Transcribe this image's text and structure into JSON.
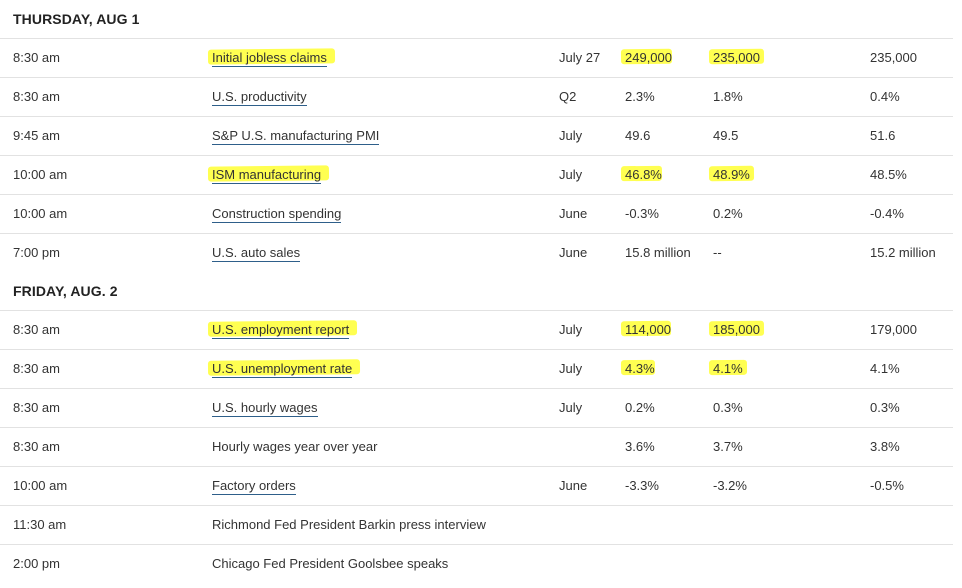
{
  "days": [
    {
      "header": "THURSDAY, AUG 1",
      "rows": [
        {
          "time": "8:30 am",
          "report": "Initial jobless claims",
          "link": true,
          "period": "July 27",
          "actual": "249,000",
          "median": "235,000",
          "previous": "235,000",
          "hl_report": true,
          "hl_actual": true,
          "hl_median": true
        },
        {
          "time": "8:30 am",
          "report": "U.S. productivity",
          "link": true,
          "period": "Q2",
          "actual": "2.3%",
          "median": "1.8%",
          "previous": "0.4%",
          "hl_report": false,
          "hl_actual": false,
          "hl_median": false
        },
        {
          "time": "9:45 am",
          "report": "S&P U.S. manufacturing PMI",
          "link": true,
          "period": "July",
          "actual": "49.6",
          "median": "49.5",
          "previous": "51.6",
          "hl_report": false,
          "hl_actual": false,
          "hl_median": false
        },
        {
          "time": "10:00 am",
          "report": "ISM manufacturing",
          "link": true,
          "period": "July",
          "actual": "46.8%",
          "median": "48.9%",
          "previous": "48.5%",
          "hl_report": true,
          "hl_actual": true,
          "hl_median": true
        },
        {
          "time": "10:00 am",
          "report": "Construction spending",
          "link": true,
          "period": "June",
          "actual": "-0.3%",
          "median": "0.2%",
          "previous": "-0.4%",
          "hl_report": false,
          "hl_actual": false,
          "hl_median": false
        },
        {
          "time": "7:00 pm",
          "report": "U.S. auto sales",
          "link": true,
          "period": "June",
          "actual": "15.8 million",
          "median": "--",
          "previous": "15.2 million",
          "hl_report": false,
          "hl_actual": false,
          "hl_median": false
        }
      ]
    },
    {
      "header": "FRIDAY, AUG. 2",
      "rows": [
        {
          "time": "8:30 am",
          "report": "U.S. employment report",
          "link": true,
          "period": "July",
          "actual": "114,000",
          "median": "185,000",
          "previous": "179,000",
          "hl_report": true,
          "hl_actual": true,
          "hl_median": true
        },
        {
          "time": "8:30 am",
          "report": "U.S. unemployment rate",
          "link": true,
          "period": "July",
          "actual": "4.3%",
          "median": "4.1%",
          "previous": "4.1%",
          "hl_report": true,
          "hl_actual": true,
          "hl_median": true
        },
        {
          "time": "8:30 am",
          "report": "U.S. hourly wages",
          "link": true,
          "period": "July",
          "actual": "0.2%",
          "median": "0.3%",
          "previous": "0.3%",
          "hl_report": false,
          "hl_actual": false,
          "hl_median": false
        },
        {
          "time": "8:30 am",
          "report": "Hourly wages year over year",
          "link": false,
          "period": "",
          "actual": "3.6%",
          "median": "3.7%",
          "previous": "3.8%",
          "hl_report": false,
          "hl_actual": false,
          "hl_median": false
        },
        {
          "time": "10:00 am",
          "report": "Factory orders",
          "link": true,
          "period": "June",
          "actual": "-3.3%",
          "median": "-3.2%",
          "previous": "-0.5%",
          "hl_report": false,
          "hl_actual": false,
          "hl_median": false
        },
        {
          "time": "11:30 am",
          "report": "Richmond Fed President Barkin press interview",
          "link": false,
          "period": "",
          "actual": "",
          "median": "",
          "previous": "",
          "hl_report": false,
          "hl_actual": false,
          "hl_median": false
        },
        {
          "time": "2:00 pm",
          "report": "Chicago Fed President Goolsbee speaks",
          "link": false,
          "period": "",
          "actual": "",
          "median": "",
          "previous": "",
          "hl_report": false,
          "hl_actual": false,
          "hl_median": false
        }
      ]
    }
  ],
  "colors": {
    "highlight": "#ffff33",
    "link_underline": "#2e5f8a",
    "divider": "#e2e2e2"
  }
}
